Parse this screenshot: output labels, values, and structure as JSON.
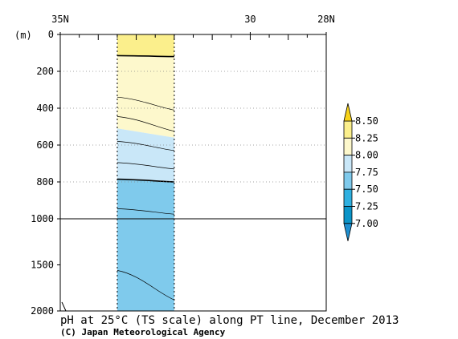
{
  "chart_data": {
    "type": "section",
    "title": "pH at 25°C (TS scale) along PT line, December 2013",
    "credit": "(C) Japan Meteorological Agency",
    "x_axis": {
      "ticks": [
        {
          "value": 35,
          "label": "35N"
        },
        {
          "value": 30,
          "label": "30"
        },
        {
          "value": 28,
          "label": "28N"
        }
      ],
      "range": [
        35,
        28
      ]
    },
    "y_axis": {
      "unit_label": "(m)",
      "ticks": [
        {
          "value": 0,
          "label": "0"
        },
        {
          "value": 200,
          "label": "200"
        },
        {
          "value": 400,
          "label": "400"
        },
        {
          "value": 600,
          "label": "600"
        },
        {
          "value": 800,
          "label": "800"
        },
        {
          "value": 1000,
          "label": "1000"
        },
        {
          "value": 1500,
          "label": "1500"
        },
        {
          "value": 2000,
          "label": "2000"
        }
      ],
      "range": [
        0,
        2000
      ],
      "scale_break_depth": 1000
    },
    "data_column_lat": [
      33.5,
      32.0
    ],
    "color_levels": [
      {
        "from": 8.25,
        "to": 8.5,
        "color": "#fbef8c"
      },
      {
        "from": 8.0,
        "to": 8.25,
        "color": "#fdf8cc"
      },
      {
        "from": 7.75,
        "to": 8.0,
        "color": "#c9e7f8"
      },
      {
        "from": 7.5,
        "to": 7.75,
        "color": "#7fcaec"
      },
      {
        "from": 7.25,
        "to": 7.5,
        "color": "#2fb0e0"
      },
      {
        "from": 7.0,
        "to": 7.25,
        "color": "#0b94c8"
      }
    ],
    "colorbar": {
      "labels": [
        "8.50",
        "8.25",
        "8.00",
        "7.75",
        "7.50",
        "7.25",
        "7.00"
      ],
      "top_arrow_color": "#f7d21a",
      "bottom_arrow_color": "#1e8fd0"
    },
    "fill_layers": [
      {
        "from_depth": [
          0,
          0
        ],
        "to_depth": [
          115,
          120
        ],
        "color": "#fbef8c"
      },
      {
        "from_depth": [
          115,
          120
        ],
        "to_depth": [
          510,
          560
        ],
        "color": "#fdf8cc"
      },
      {
        "from_depth": [
          510,
          560
        ],
        "to_depth": [
          785,
          800
        ],
        "color": "#c9e7f8"
      },
      {
        "from_depth": [
          785,
          800
        ],
        "to_depth": [
          2000,
          2000
        ],
        "color": "#7fcaec"
      }
    ],
    "contours": [
      {
        "depths": [
          115,
          120
        ],
        "bold": true
      },
      {
        "depths": [
          340,
          410
        ],
        "bold": false
      },
      {
        "depths": [
          445,
          525
        ],
        "bold": false
      },
      {
        "depths": [
          580,
          630
        ],
        "bold": false
      },
      {
        "depths": [
          695,
          730
        ],
        "bold": false
      },
      {
        "depths": [
          785,
          800
        ],
        "bold": true
      },
      {
        "depths": [
          945,
          975
        ],
        "bold": false
      },
      {
        "depths": [
          1560,
          1880
        ],
        "bold": false
      }
    ]
  }
}
